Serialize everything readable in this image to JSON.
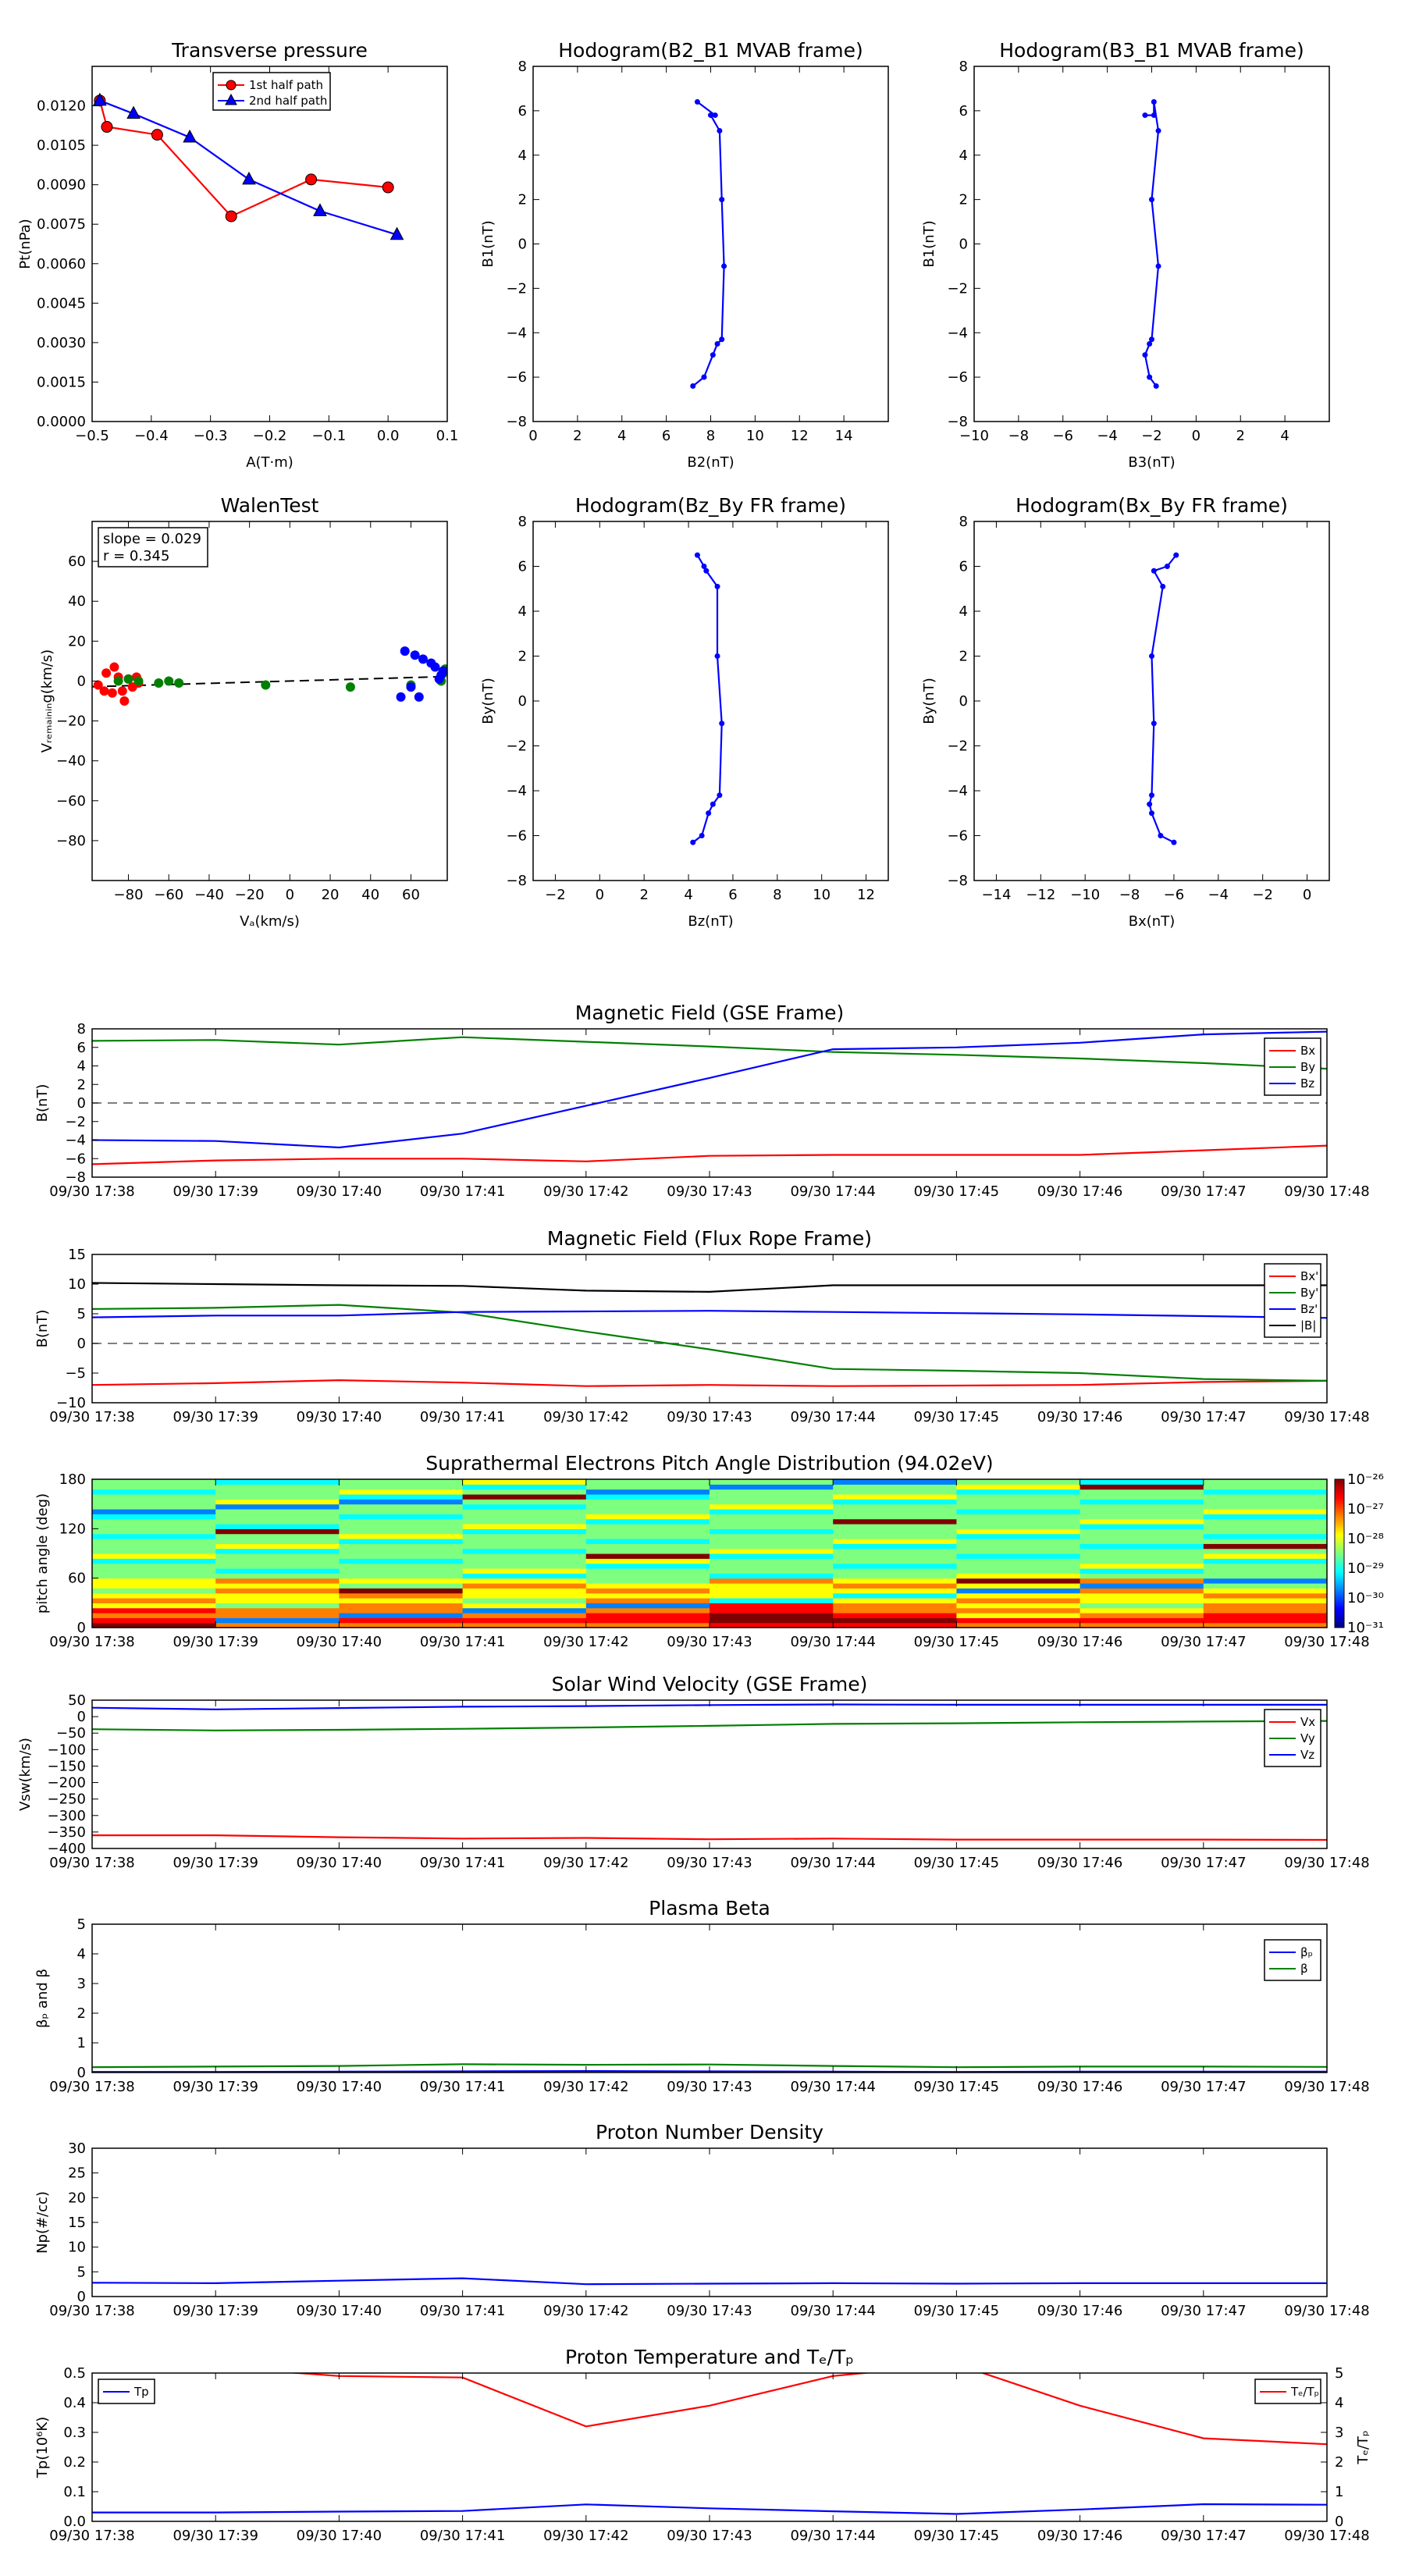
{
  "chart_data": [
    {
      "id": "transverse",
      "type": "line",
      "title": "Transverse pressure",
      "xlabel": "A(T·m)",
      "ylabel": "Pt(nPa)",
      "xlim": [
        -0.5,
        0.1
      ],
      "ylim": [
        0,
        0.0135
      ],
      "xticks": [
        "−0.5",
        "−0.4",
        "−0.3",
        "−0.2",
        "−0.1",
        "0.0",
        "0.1"
      ],
      "yticks": [
        "0.0000",
        "0.0015",
        "0.0030",
        "0.0045",
        "0.0060",
        "0.0075",
        "0.0090",
        "0.0105",
        "0.0120"
      ],
      "legend": "top-center",
      "series": [
        {
          "name": "1st half path",
          "color": "#ff0000",
          "marker": "circle",
          "x": [
            -0.487,
            -0.475,
            -0.39,
            -0.265,
            -0.13,
            0.0
          ],
          "y": [
            0.0122,
            0.0112,
            0.0109,
            0.0078,
            0.0092,
            0.0089
          ]
        },
        {
          "name": "2nd half path",
          "color": "#0000ff",
          "marker": "triangle",
          "x": [
            -0.487,
            -0.43,
            -0.335,
            -0.235,
            -0.115,
            0.015
          ],
          "y": [
            0.0122,
            0.0117,
            0.0108,
            0.0092,
            0.008,
            0.0071
          ]
        }
      ]
    },
    {
      "id": "hodo_b2b1",
      "type": "line",
      "title": "Hodogram(B2_B1 MVAB frame)",
      "xlabel": "B2(nT)",
      "ylabel": "B1(nT)",
      "xlim": [
        0,
        16
      ],
      "ylim": [
        -8,
        8
      ],
      "xticks": [
        "0",
        "2",
        "4",
        "6",
        "8",
        "10",
        "12",
        "14"
      ],
      "yticks": [
        "−8",
        "−6",
        "−4",
        "−2",
        "0",
        "2",
        "4",
        "6",
        "8"
      ],
      "series": [
        {
          "color": "#0000ff",
          "marker": "dot",
          "x": [
            7.4,
            8.2,
            8.0,
            8.4,
            8.5,
            8.6,
            8.5,
            8.3,
            8.1,
            7.7,
            7.2
          ],
          "y": [
            6.4,
            5.8,
            5.8,
            5.1,
            2.0,
            -1.0,
            -4.3,
            -4.5,
            -5.0,
            -6.0,
            -6.4
          ]
        }
      ]
    },
    {
      "id": "hodo_b3b1",
      "type": "line",
      "title": "Hodogram(B3_B1 MVAB frame)",
      "xlabel": "B3(nT)",
      "ylabel": "B1(nT)",
      "xlim": [
        -10,
        6
      ],
      "ylim": [
        -8,
        8
      ],
      "xticks": [
        "−10",
        "−8",
        "−6",
        "−4",
        "−2",
        "0",
        "2",
        "4"
      ],
      "yticks": [
        "−8",
        "−6",
        "−4",
        "−2",
        "0",
        "2",
        "4",
        "6",
        "8"
      ],
      "series": [
        {
          "color": "#0000ff",
          "marker": "dot",
          "x": [
            -2.3,
            -1.9,
            -1.9,
            -1.7,
            -2.0,
            -1.7,
            -2.0,
            -2.1,
            -2.3,
            -2.1,
            -1.8
          ],
          "y": [
            5.8,
            5.8,
            6.4,
            5.1,
            2.0,
            -1.0,
            -4.3,
            -4.5,
            -5.0,
            -6.0,
            -6.4
          ]
        }
      ]
    },
    {
      "id": "walen",
      "type": "scatter",
      "title": "WalenTest",
      "xlabel": "Vₐ(km/s)",
      "ylabel": "Vᵣₑₘₐᵢₙᵢₙg(km/s)",
      "xlim": [
        -98,
        78
      ],
      "ylim": [
        -100,
        80
      ],
      "xticks": [
        "−80",
        "−60",
        "−40",
        "−20",
        "0",
        "20",
        "40",
        "60"
      ],
      "yticks": [
        "−80",
        "−60",
        "−40",
        "−20",
        "0",
        "20",
        "40",
        "60"
      ],
      "annotation": [
        "slope = 0.029",
        "r = 0.345"
      ],
      "fit": {
        "slope": 0.029,
        "intercept": 0.0
      },
      "series": [
        {
          "color": "#ff0000",
          "x": [
            -95,
            -92,
            -91,
            -88,
            -87,
            -85,
            -83,
            -82,
            -80,
            -78,
            -76,
            -75
          ],
          "y": [
            -2,
            -5,
            4,
            -6,
            7,
            2,
            -5,
            -10,
            1,
            -3,
            2,
            -1
          ]
        },
        {
          "color": "#008000",
          "x": [
            -85,
            -80,
            -75,
            -65,
            -60,
            -55,
            -12,
            30,
            60,
            75,
            76,
            77
          ],
          "y": [
            0,
            1,
            0,
            -1,
            0,
            -1,
            -2,
            -3,
            -2,
            0,
            4,
            6
          ]
        },
        {
          "color": "#0000ff",
          "x": [
            55,
            57,
            60,
            62,
            64,
            66,
            70,
            72,
            74,
            75,
            76
          ],
          "y": [
            -8,
            15,
            -3,
            13,
            -8,
            11,
            9,
            7,
            1,
            3,
            5
          ]
        }
      ]
    },
    {
      "id": "hodo_bzby",
      "type": "line",
      "title": "Hodogram(Bz_By FR frame)",
      "xlabel": "Bz(nT)",
      "ylabel": "By(nT)",
      "xlim": [
        -3,
        13
      ],
      "ylim": [
        -8,
        8
      ],
      "xticks": [
        "−2",
        "0",
        "2",
        "4",
        "6",
        "8",
        "10",
        "12"
      ],
      "yticks": [
        "−8",
        "−6",
        "−4",
        "−2",
        "0",
        "2",
        "4",
        "6",
        "8"
      ],
      "series": [
        {
          "color": "#0000ff",
          "marker": "dot",
          "x": [
            4.4,
            4.7,
            4.8,
            5.3,
            5.3,
            5.5,
            5.4,
            5.1,
            4.9,
            4.6,
            4.2
          ],
          "y": [
            6.5,
            6.0,
            5.8,
            5.1,
            2.0,
            -1.0,
            -4.2,
            -4.6,
            -5.0,
            -6.0,
            -6.3
          ]
        }
      ]
    },
    {
      "id": "hodo_bxby",
      "type": "line",
      "title": "Hodogram(Bx_By FR frame)",
      "xlabel": "Bx(nT)",
      "ylabel": "By(nT)",
      "xlim": [
        -15,
        1
      ],
      "ylim": [
        -8,
        8
      ],
      "xticks": [
        "−14",
        "−12",
        "−10",
        "−8",
        "−6",
        "−4",
        "−2",
        "0"
      ],
      "yticks": [
        "−8",
        "−6",
        "−4",
        "−2",
        "0",
        "2",
        "4",
        "6",
        "8"
      ],
      "series": [
        {
          "color": "#0000ff",
          "marker": "dot",
          "x": [
            -5.9,
            -6.3,
            -6.9,
            -6.5,
            -7.0,
            -6.9,
            -7.0,
            -7.1,
            -7.0,
            -6.6,
            -6.0
          ],
          "y": [
            6.5,
            6.0,
            5.8,
            5.1,
            2.0,
            -1.0,
            -4.2,
            -4.6,
            -5.0,
            -6.0,
            -6.3
          ]
        }
      ]
    },
    {
      "id": "mag_gse",
      "type": "line",
      "title": "Magnetic Field (GSE Frame)",
      "ylabel": "B(nT)",
      "ylim": [
        -8,
        8
      ],
      "yticks": [
        "−8",
        "−6",
        "−4",
        "−2",
        "0",
        "2",
        "4",
        "6",
        "8"
      ],
      "zero_line": true,
      "legend": "right",
      "series": [
        {
          "name": "Bx",
          "color": "#ff0000",
          "values": [
            -6.6,
            -6.2,
            -6.0,
            -6.0,
            -6.3,
            -5.7,
            -5.6,
            -5.6,
            -5.6,
            -5.1,
            -4.6
          ]
        },
        {
          "name": "By",
          "color": "#008000",
          "values": [
            6.7,
            6.8,
            6.3,
            7.1,
            6.6,
            6.1,
            5.5,
            5.2,
            4.8,
            4.3,
            3.7
          ]
        },
        {
          "name": "Bz",
          "color": "#0000ff",
          "values": [
            -4.0,
            -4.1,
            -4.8,
            -3.3,
            -0.3,
            2.7,
            5.8,
            6.0,
            6.5,
            7.4,
            7.7
          ]
        }
      ]
    },
    {
      "id": "mag_fr",
      "type": "line",
      "title": "Magnetic Field (Flux Rope Frame)",
      "ylabel": "B(nT)",
      "ylim": [
        -10,
        15
      ],
      "yticks": [
        "−10",
        "−5",
        "0",
        "5",
        "10",
        "15"
      ],
      "zero_line": true,
      "legend": "right",
      "series": [
        {
          "name": "Bx'",
          "color": "#ff0000",
          "values": [
            -7.0,
            -6.7,
            -6.2,
            -6.6,
            -7.2,
            -7.0,
            -7.2,
            -7.1,
            -7.0,
            -6.5,
            -6.3
          ]
        },
        {
          "name": "By'",
          "color": "#008000",
          "values": [
            5.8,
            6.0,
            6.5,
            5.2,
            2.0,
            -1.0,
            -4.3,
            -4.6,
            -5.0,
            -6.0,
            -6.3
          ]
        },
        {
          "name": "Bz'",
          "color": "#0000ff",
          "values": [
            4.4,
            4.7,
            4.7,
            5.3,
            5.4,
            5.5,
            5.3,
            5.1,
            4.9,
            4.6,
            4.3
          ]
        },
        {
          "name": "|B|",
          "color": "#000000",
          "values": [
            10.2,
            10.0,
            9.8,
            9.7,
            8.9,
            8.7,
            9.8,
            9.8,
            9.8,
            9.8,
            9.8
          ]
        }
      ]
    },
    {
      "id": "pad",
      "type": "heatmap",
      "title": "Suprathermal Electrons Pitch Angle Distribution (94.02eV)",
      "ylabel": "pitch angle (deg)",
      "ylim": [
        0,
        180
      ],
      "yticks": [
        "0",
        "60",
        "120",
        "180"
      ],
      "colorbar_ticks": [
        "10⁻³¹",
        "10⁻³⁰",
        "10⁻²⁹",
        "10⁻²⁸",
        "10⁻²⁷",
        "10⁻²⁶"
      ],
      "columns": 10,
      "rows": 30
    },
    {
      "id": "vsw",
      "type": "line",
      "title": "Solar Wind Velocity (GSE Frame)",
      "ylabel": "Vsw(km/s)",
      "ylim": [
        -400,
        50
      ],
      "yticks": [
        "−400",
        "−350",
        "−300",
        "−250",
        "−200",
        "−150",
        "−100",
        "−50",
        "0",
        "50"
      ],
      "legend": "right",
      "series": [
        {
          "name": "Vx",
          "color": "#ff0000",
          "values": [
            -360,
            -360,
            -366,
            -370,
            -368,
            -372,
            -370,
            -373,
            -373,
            -373,
            -374
          ]
        },
        {
          "name": "Vy",
          "color": "#008000",
          "values": [
            -38,
            -42,
            -40,
            -37,
            -33,
            -28,
            -22,
            -20,
            -17,
            -15,
            -13
          ]
        },
        {
          "name": "Vz",
          "color": "#0000ff",
          "values": [
            27,
            22,
            26,
            30,
            32,
            35,
            37,
            36,
            36,
            36,
            36
          ]
        }
      ]
    },
    {
      "id": "beta",
      "type": "line",
      "title": "Plasma Beta",
      "ylabel": "βₚ and β",
      "ylim": [
        0,
        5
      ],
      "yticks": [
        "0",
        "1",
        "2",
        "3",
        "4",
        "5"
      ],
      "legend": "right",
      "series": [
        {
          "name": "βₚ",
          "color": "#0000ff",
          "values": [
            0.02,
            0.02,
            0.03,
            0.04,
            0.05,
            0.04,
            0.03,
            0.02,
            0.03,
            0.03,
            0.03
          ]
        },
        {
          "name": "β",
          "color": "#008000",
          "values": [
            0.18,
            0.2,
            0.22,
            0.28,
            0.26,
            0.27,
            0.22,
            0.18,
            0.2,
            0.2,
            0.19
          ]
        }
      ]
    },
    {
      "id": "density",
      "type": "line",
      "title": "Proton Number Density",
      "ylabel": "Np(#/cc)",
      "ylim": [
        0,
        30
      ],
      "yticks": [
        "0",
        "5",
        "10",
        "15",
        "20",
        "25",
        "30"
      ],
      "series": [
        {
          "name": "Np",
          "color": "#0000ff",
          "values": [
            2.8,
            2.7,
            3.2,
            3.7,
            2.5,
            2.6,
            2.7,
            2.6,
            2.7,
            2.7,
            2.7
          ]
        }
      ]
    },
    {
      "id": "temp",
      "type": "line",
      "title": "Proton Temperature and Tₑ/Tₚ",
      "ylabel": "Tp(10⁶K)",
      "ylabel_right": "Tₑ/Tₚ",
      "ylim": [
        0,
        0.5
      ],
      "ylim_right": [
        0,
        5
      ],
      "yticks": [
        "0.0",
        "0.1",
        "0.2",
        "0.3",
        "0.4",
        "0.5"
      ],
      "yticks_right": [
        "0",
        "1",
        "2",
        "3",
        "4",
        "5"
      ],
      "series": [
        {
          "name": "Tp",
          "color": "#0000ff",
          "values": [
            0.03,
            0.03,
            0.033,
            0.035,
            0.057,
            0.044,
            0.034,
            0.025,
            0.04,
            0.058,
            0.056
          ],
          "legend": "top-left"
        },
        {
          "name": "Tₑ/Tₚ",
          "color": "#ff0000",
          "axis": "right",
          "values": [
            5.3,
            5.2,
            4.9,
            4.85,
            3.2,
            3.9,
            4.9,
            5.3,
            3.9,
            2.8,
            2.6
          ],
          "legend": "top-right"
        }
      ]
    }
  ],
  "time_ticks": [
    "09/30 17:38",
    "09/30 17:39",
    "09/30 17:40",
    "09/30 17:41",
    "09/30 17:42",
    "09/30 17:43",
    "09/30 17:44",
    "09/30 17:45",
    "09/30 17:46",
    "09/30 17:47",
    "09/30 17:48"
  ]
}
